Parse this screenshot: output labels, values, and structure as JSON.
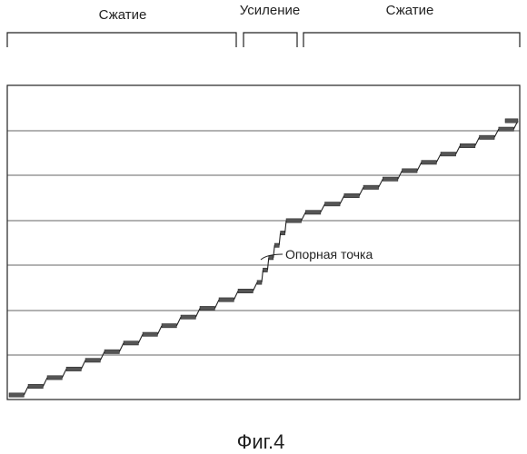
{
  "regions": [
    {
      "label": "Сжатие"
    },
    {
      "label": "Усиление"
    },
    {
      "label": "Сжатие"
    }
  ],
  "annotation": {
    "label": "Опорная точка"
  },
  "caption": "Фиг.4",
  "colors": {
    "line": "#222222",
    "step": "#555555",
    "grid": "#333333",
    "frame": "#222222"
  }
}
